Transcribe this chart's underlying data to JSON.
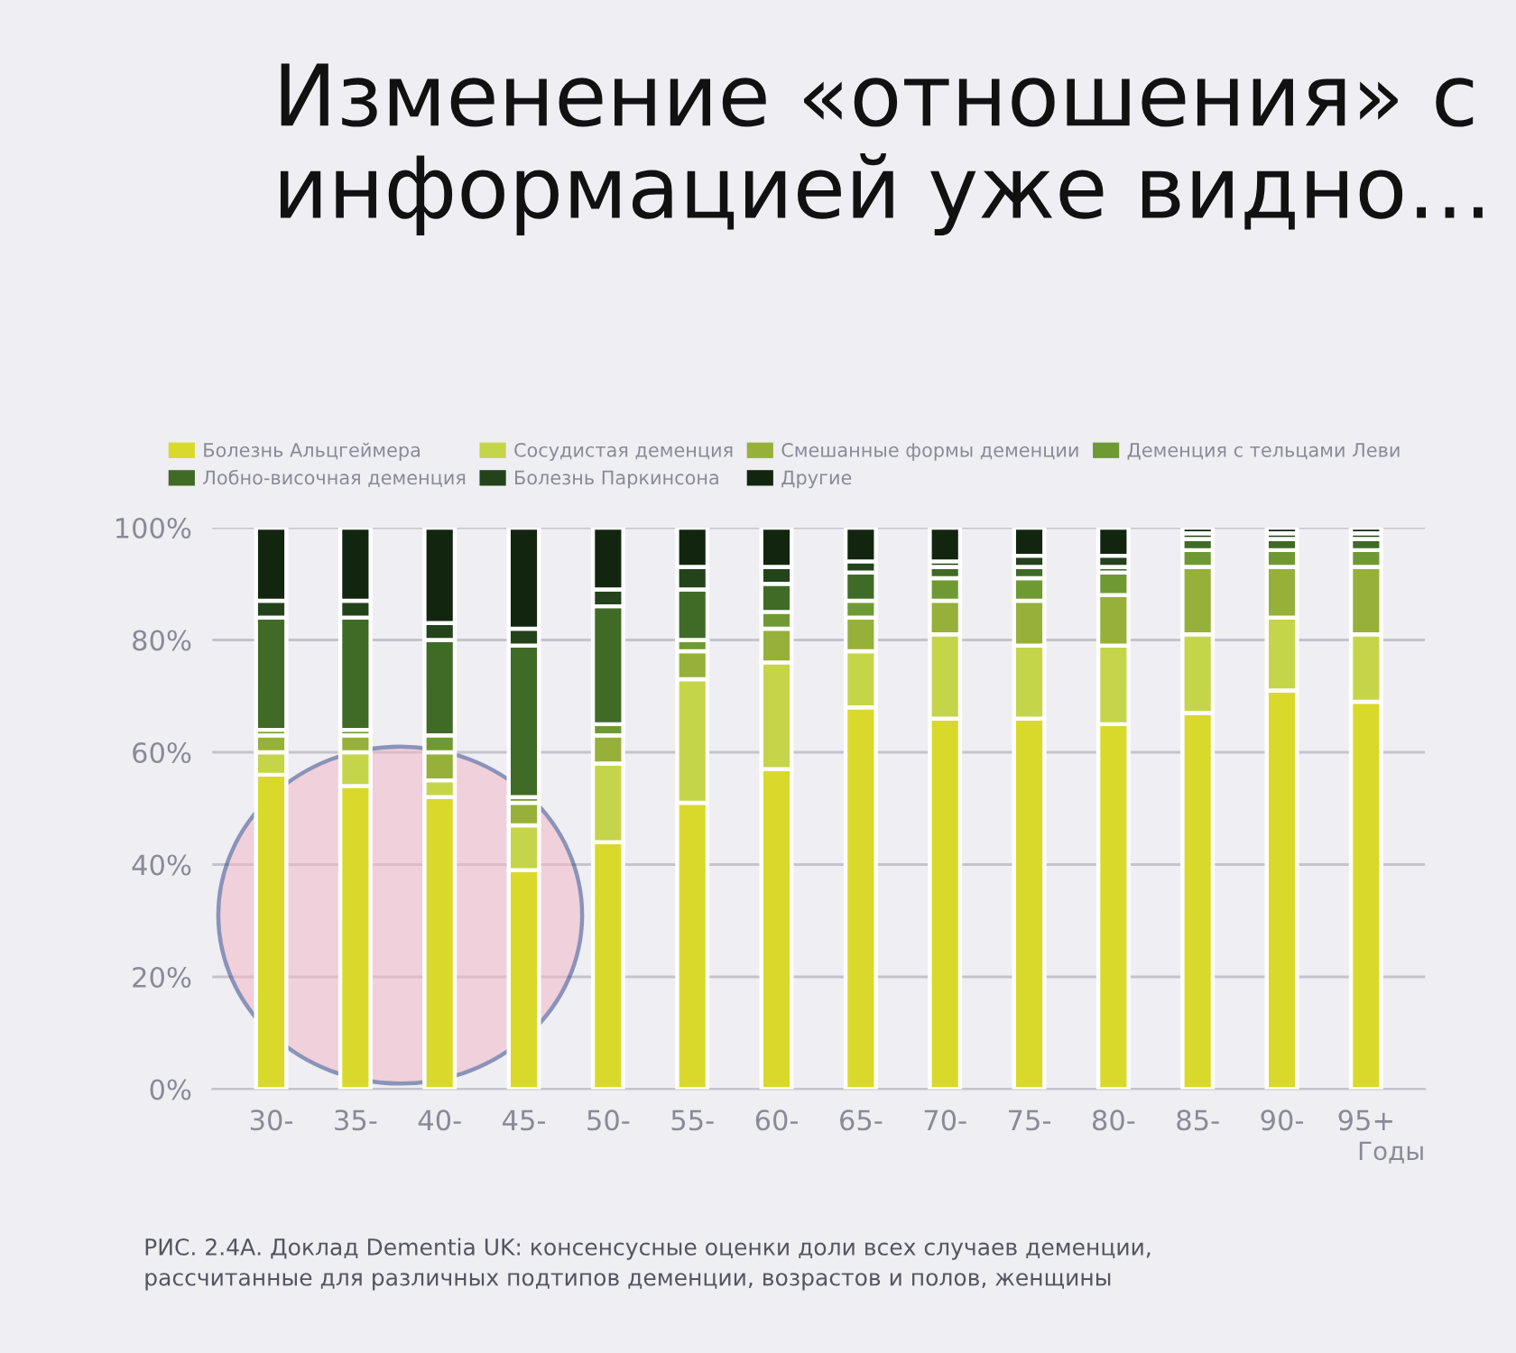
{
  "chart_data": {
    "type": "bar",
    "stacked": true,
    "title": "Изменение «отношения» с информацией уже видно…",
    "xlabel": "Годы",
    "categories": [
      "30-",
      "35-",
      "40-",
      "45-",
      "50-",
      "55-",
      "60-",
      "65-",
      "70-",
      "75-",
      "80-",
      "85-",
      "90-",
      "95+"
    ],
    "series": [
      {
        "name": "Болезнь Альцгеймера",
        "color": "#d9d92b",
        "values": [
          56,
          54,
          52,
          39,
          44,
          51,
          57,
          68,
          66,
          66,
          65,
          67,
          71,
          69
        ]
      },
      {
        "name": "Сосудистая деменция",
        "color": "#c5d54a",
        "values": [
          4,
          6,
          3,
          8,
          14,
          22,
          19,
          10,
          15,
          13,
          14,
          14,
          13,
          12
        ]
      },
      {
        "name": "Смешанные формы деменции",
        "color": "#96b03a",
        "values": [
          3,
          3,
          5,
          4,
          5,
          5,
          6,
          6,
          6,
          8,
          9,
          12,
          9,
          12
        ]
      },
      {
        "name": "Деменция с тельцами Леви",
        "color": "#6f9a33",
        "values": [
          1,
          1,
          3,
          1,
          2,
          2,
          3,
          3,
          4,
          4,
          4,
          3,
          3,
          3
        ]
      },
      {
        "name": "Лобно-височная деменция",
        "color": "#3f6b26",
        "values": [
          20,
          20,
          17,
          27,
          21,
          9,
          5,
          5,
          2,
          2,
          1,
          2,
          2,
          2
        ]
      },
      {
        "name": "Болезнь Паркинсона",
        "color": "#23431b",
        "values": [
          3,
          3,
          3,
          3,
          3,
          4,
          3,
          2,
          1,
          2,
          2,
          1,
          1,
          1
        ]
      },
      {
        "name": "Другие",
        "color": "#12260f",
        "values": [
          13,
          13,
          17,
          18,
          11,
          7,
          7,
          6,
          6,
          5,
          5,
          1,
          1,
          1
        ]
      }
    ],
    "ylim": [
      0,
      100
    ],
    "yticks": [
      {
        "value": 0,
        "label": "0%"
      },
      {
        "value": 20,
        "label": "20%"
      },
      {
        "value": 40,
        "label": "40%"
      },
      {
        "value": 60,
        "label": "60%"
      },
      {
        "value": 80,
        "label": "80%"
      },
      {
        "value": 100,
        "label": "100%"
      }
    ],
    "grid": "y",
    "legend": "top",
    "annotations": [
      "РИС. 2.4А. Доклад Dementia UK: консенсусные оценки доли всех случаев деменции, рассчитанные для различных подтипов деменции, возрастов и полов, женщины"
    ]
  }
}
